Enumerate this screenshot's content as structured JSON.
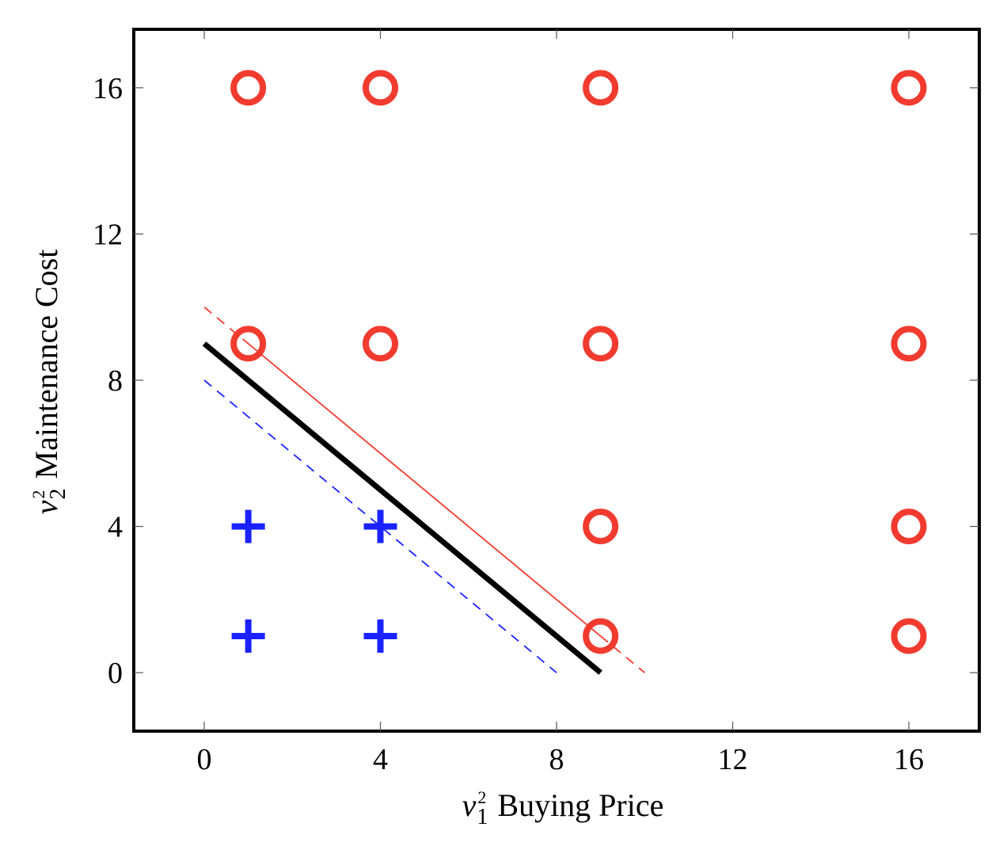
{
  "chart_data": {
    "type": "scatter",
    "xlabel": {
      "var": "v",
      "sub": "1",
      "sup": "2",
      "text": "Buying Price"
    },
    "ylabel": {
      "var": "v",
      "sub": "2",
      "sup": "2",
      "text": "Maintenance Cost"
    },
    "xlim": [
      -1.6,
      17.6
    ],
    "ylim": [
      -1.6,
      17.6
    ],
    "x_ticks": [
      "0",
      "4",
      "8",
      "12",
      "16"
    ],
    "y_ticks": [
      "0",
      "4",
      "8",
      "12",
      "16"
    ],
    "grid": false,
    "series": [
      {
        "marker": "plus",
        "color": "#1a23ff",
        "points": [
          [
            1,
            1
          ],
          [
            4,
            1
          ],
          [
            1,
            4
          ],
          [
            4,
            4
          ]
        ]
      },
      {
        "marker": "circle",
        "color": "#f23b2f",
        "points": [
          [
            9,
            1
          ],
          [
            16,
            1
          ],
          [
            9,
            4
          ],
          [
            16,
            4
          ],
          [
            1,
            9
          ],
          [
            4,
            9
          ],
          [
            9,
            9
          ],
          [
            16,
            9
          ],
          [
            1,
            16
          ],
          [
            4,
            16
          ],
          [
            9,
            16
          ],
          [
            16,
            16
          ]
        ]
      }
    ],
    "lines": [
      {
        "style": "solid",
        "color": "#000000",
        "from": [
          0,
          9
        ],
        "to": [
          9,
          0
        ]
      },
      {
        "style": "solid-then-dashed",
        "color": "#f23b2f",
        "from": [
          0,
          10
        ],
        "to": [
          10,
          0
        ],
        "dashed_segments": [
          [
            0,
            1
          ],
          [
            9,
            10
          ]
        ]
      },
      {
        "style": "dashed",
        "color": "#1a23ff",
        "from": [
          0,
          8
        ],
        "to": [
          8,
          0
        ]
      }
    ]
  }
}
